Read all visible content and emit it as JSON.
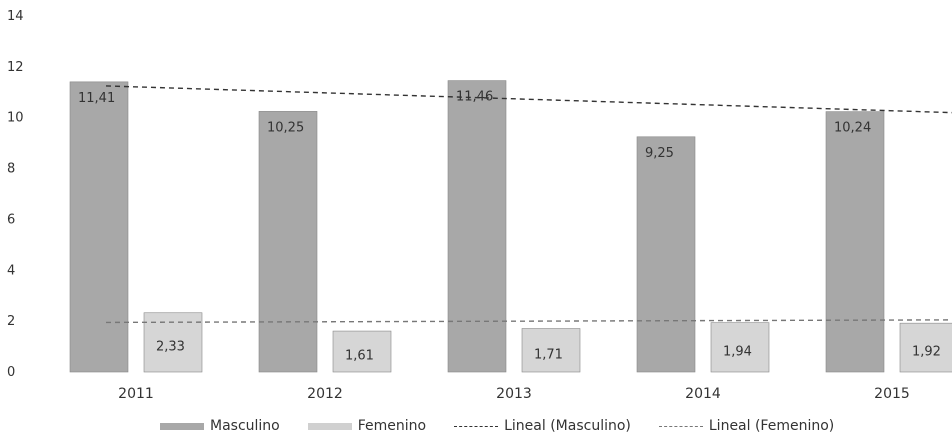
{
  "chart_data": {
    "type": "bar",
    "categories": [
      "2011",
      "2012",
      "2013",
      "2014",
      "2015"
    ],
    "series": [
      {
        "name": "Masculino",
        "values": [
          11.41,
          10.25,
          11.46,
          9.25,
          10.24
        ],
        "labels": [
          "11,41",
          "10,25",
          "11,46",
          "9,25",
          "10,24"
        ],
        "color": "#a8a8a8"
      },
      {
        "name": "Femenino",
        "values": [
          2.33,
          1.61,
          1.71,
          1.94,
          1.92
        ],
        "labels": [
          "2,33",
          "1,61",
          "1,71",
          "1,94",
          "1,92"
        ],
        "color": "#d6d6d6"
      }
    ],
    "trendlines": [
      {
        "name": "Lineal (Masculino)",
        "start": 11.25,
        "end": 10.2,
        "color": "#333333"
      },
      {
        "name": "Lineal (Femenino)",
        "start": 1.95,
        "end": 2.05,
        "color": "#777777"
      }
    ],
    "yticks": [
      "0",
      "2",
      "4",
      "6",
      "8",
      "10",
      "12",
      "14"
    ],
    "ylim": [
      0,
      14
    ],
    "grid": false,
    "legend_position": "bottom"
  }
}
